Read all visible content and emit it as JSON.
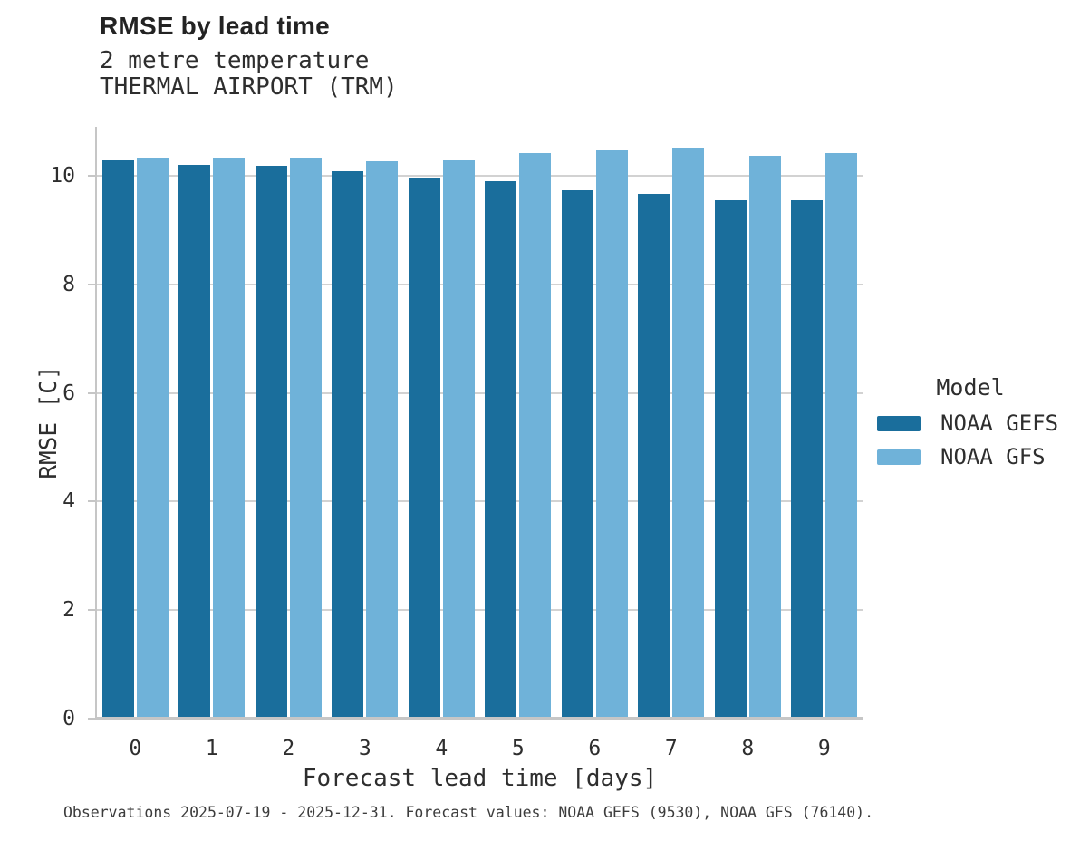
{
  "chart_data": {
    "type": "bar",
    "title": "RMSE by lead time",
    "subtitle": [
      "2 metre temperature",
      "THERMAL AIRPORT (TRM)"
    ],
    "xlabel": "Forecast lead time [days]",
    "ylabel": "RMSE [C]",
    "categories": [
      "0",
      "1",
      "2",
      "3",
      "4",
      "5",
      "6",
      "7",
      "8",
      "9"
    ],
    "series": [
      {
        "name": "NOAA GEFS",
        "color": "#1a6e9c",
        "values": [
          10.29,
          10.2,
          10.19,
          10.08,
          9.97,
          9.9,
          9.74,
          9.66,
          9.55,
          9.54
        ]
      },
      {
        "name": "NOAA GFS",
        "color": "#6fb2d9",
        "values": [
          10.34,
          10.33,
          10.33,
          10.27,
          10.29,
          10.41,
          10.47,
          10.51,
          10.37,
          10.41
        ]
      }
    ],
    "ylim": [
      0,
      10.9
    ],
    "yticks": [
      0,
      2,
      4,
      6,
      8,
      10
    ],
    "grid": true,
    "legend": {
      "title": "Model",
      "position": "right"
    },
    "caption": "Observations 2025-07-19 - 2025-12-31. Forecast values: NOAA GEFS (9530), NOAA GFS (76140)."
  },
  "theme": {
    "grid_color": "#d2d2d2",
    "axis_color": "#c6c6c6",
    "title_color": "#232323",
    "text_color": "#2e2e2e",
    "background": "#ffffff"
  }
}
